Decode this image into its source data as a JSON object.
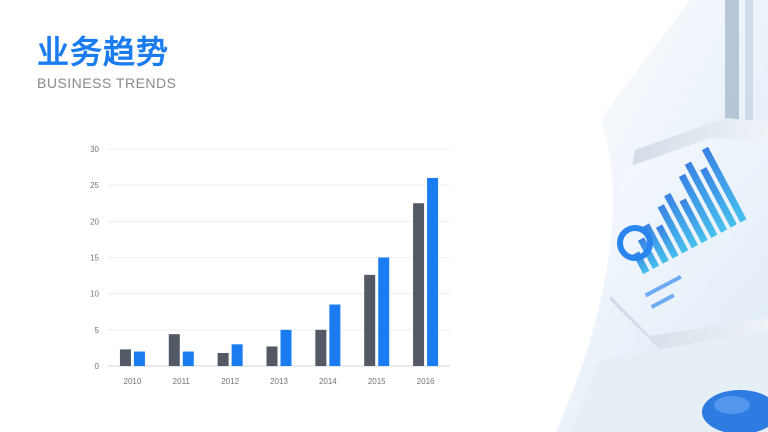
{
  "slide": {
    "title": "业务趋势",
    "subtitle": "BUSINESS TRENDS"
  },
  "colors": {
    "accent": "#1a7cf0",
    "series_dark": "#535a65",
    "series_blue": "#1a7cf0",
    "subtitle": "#8a8a8a"
  },
  "chart_data": {
    "type": "bar",
    "categories": [
      "2010",
      "2011",
      "2012",
      "2013",
      "2014",
      "2015",
      "2016"
    ],
    "series": [
      {
        "values": [
          2.3,
          4.4,
          1.8,
          2.7,
          5.0,
          12.6,
          22.5
        ]
      },
      {
        "values": [
          2.0,
          2.0,
          3.0,
          5.0,
          8.5,
          15.0,
          26.0
        ]
      }
    ],
    "ylim": [
      0,
      30
    ],
    "yticks": [
      0,
      5,
      10,
      15,
      20,
      25,
      30
    ],
    "grid": true,
    "legend": "none"
  }
}
